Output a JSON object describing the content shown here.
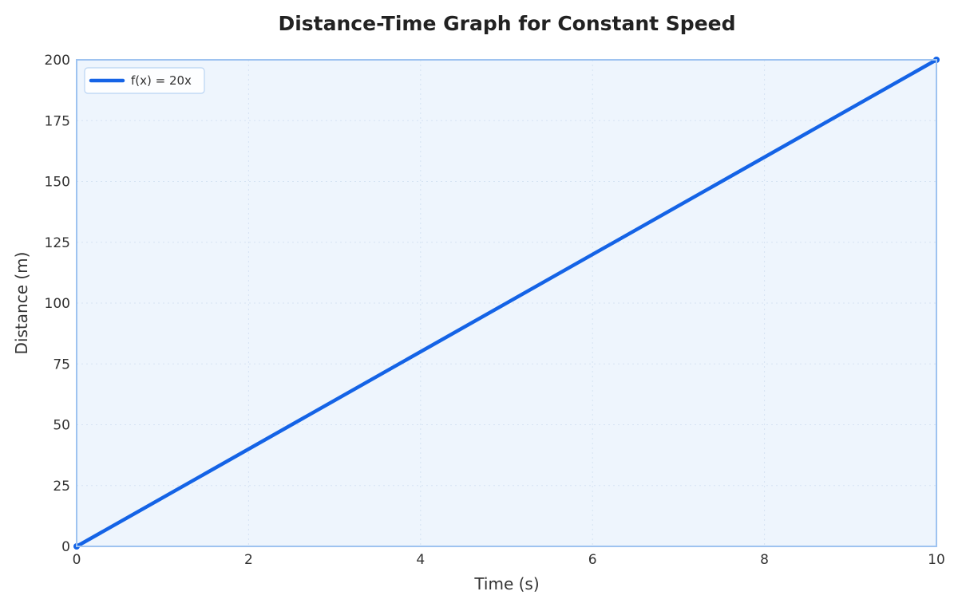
{
  "chart_data": {
    "type": "line",
    "title": "Distance-Time Graph for Constant Speed",
    "xlabel": "Time (s)",
    "ylabel": "Distance (m)",
    "xlim": [
      0,
      10
    ],
    "ylim": [
      0,
      200
    ],
    "x_ticks": [
      0,
      2,
      4,
      6,
      8,
      10
    ],
    "y_ticks": [
      0,
      25,
      50,
      75,
      100,
      125,
      150,
      175,
      200
    ],
    "grid": true,
    "legend_position": "top-left",
    "series": [
      {
        "name": "f(x) = 20x",
        "x": [
          0,
          10
        ],
        "y": [
          0,
          200
        ],
        "color": "#1463e6",
        "markers_at_endpoints": true
      }
    ],
    "plot_background": "#eef5fd",
    "frame_color": "#9ec3f0"
  }
}
